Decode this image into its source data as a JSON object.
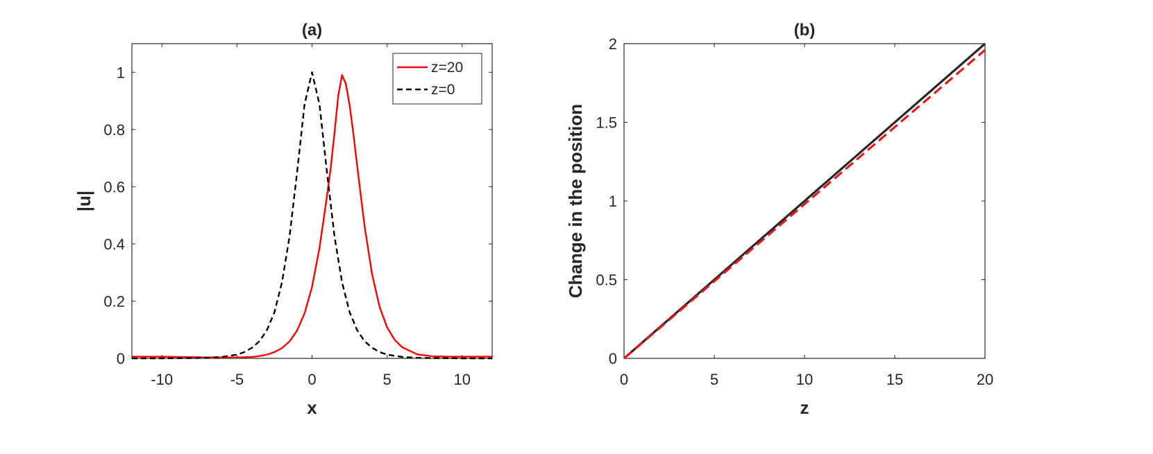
{
  "chart_data": [
    {
      "panel": "(a)",
      "type": "line",
      "title": "(a)",
      "xlabel": "x",
      "ylabel": "|u|",
      "xlim": [
        -12,
        12
      ],
      "ylim": [
        0,
        1.1
      ],
      "xticks": [
        -10,
        -5,
        0,
        5,
        10
      ],
      "yticks": [
        0,
        0.2,
        0.4,
        0.6,
        0.8,
        1
      ],
      "xtick_labels": [
        "-10",
        "-5",
        "0",
        "5",
        "10"
      ],
      "ytick_labels": [
        "0",
        "0.2",
        "0.4",
        "0.6",
        "0.8",
        "1"
      ],
      "grid": false,
      "legend_position": "top-right",
      "series": [
        {
          "name": "z=20",
          "color": "#ff0000",
          "style": "solid",
          "x": [
            -12,
            -11,
            -10,
            -9,
            -8,
            -7,
            -6,
            -5,
            -4,
            -3.5,
            -3,
            -2.5,
            -2,
            -1.5,
            -1,
            -0.5,
            0,
            0.5,
            1,
            1.25,
            1.5,
            1.75,
            2,
            2.25,
            2.5,
            2.75,
            3,
            3.5,
            4,
            4.5,
            5,
            5.5,
            6,
            7,
            8,
            9,
            10,
            11,
            12
          ],
          "y": [
            0.006,
            0.006,
            0.006,
            0.005,
            0.004,
            0.003,
            0.003,
            0.003,
            0.005,
            0.008,
            0.013,
            0.022,
            0.036,
            0.059,
            0.097,
            0.157,
            0.25,
            0.387,
            0.569,
            0.668,
            0.79,
            0.92,
            0.99,
            0.96,
            0.886,
            0.787,
            0.676,
            0.462,
            0.294,
            0.18,
            0.108,
            0.065,
            0.039,
            0.014,
            0.007,
            0.006,
            0.006,
            0.006,
            0.006
          ]
        },
        {
          "name": "z=0",
          "color": "#000000",
          "style": "dashed",
          "x": [
            -12,
            -10,
            -8,
            -7,
            -6,
            -5,
            -4.5,
            -4,
            -3.5,
            -3,
            -2.5,
            -2,
            -1.5,
            -1,
            -0.5,
            0,
            0.5,
            1,
            1.5,
            2,
            2.5,
            3,
            3.5,
            4,
            4.5,
            5,
            6,
            7,
            8,
            10,
            12
          ],
          "y": [
            0,
            0,
            0.001,
            0.002,
            0.005,
            0.013,
            0.022,
            0.037,
            0.06,
            0.099,
            0.162,
            0.266,
            0.425,
            0.648,
            0.887,
            1,
            0.887,
            0.648,
            0.425,
            0.266,
            0.162,
            0.099,
            0.06,
            0.037,
            0.022,
            0.013,
            0.005,
            0.002,
            0.001,
            0,
            0
          ]
        }
      ]
    },
    {
      "panel": "(b)",
      "type": "line",
      "title": "(b)",
      "xlabel": "z",
      "ylabel": "Change in the position",
      "xlim": [
        0,
        20
      ],
      "ylim": [
        0,
        2
      ],
      "xticks": [
        0,
        5,
        10,
        15,
        20
      ],
      "yticks": [
        0,
        0.5,
        1,
        1.5,
        2
      ],
      "xtick_labels": [
        "0",
        "5",
        "10",
        "15",
        "20"
      ],
      "ytick_labels": [
        "0",
        "0.5",
        "1",
        "1.5",
        "2"
      ],
      "grid": false,
      "series": [
        {
          "color": "#262626",
          "style": "solid",
          "x": [
            0,
            20
          ],
          "y": [
            0,
            2
          ]
        },
        {
          "color": "#e8161b",
          "style": "dashed",
          "x": [
            0,
            20
          ],
          "y": [
            0,
            1.96
          ]
        }
      ]
    }
  ]
}
